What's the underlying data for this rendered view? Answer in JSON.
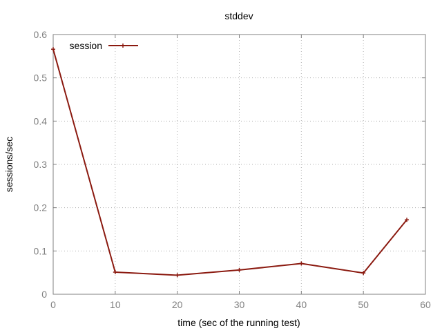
{
  "chart_data": {
    "type": "line",
    "title": "stddev",
    "xlabel": "time (sec of the running test)",
    "ylabel": "sessions/sec",
    "xlim": [
      0,
      60
    ],
    "ylim": [
      0,
      0.6
    ],
    "x_ticks": [
      0,
      10,
      20,
      30,
      40,
      50,
      60
    ],
    "y_ticks": [
      0,
      0.1,
      0.2,
      0.3,
      0.4,
      0.5,
      0.6
    ],
    "x_tick_labels": [
      "0",
      "10",
      "20",
      "30",
      "40",
      "50",
      "60"
    ],
    "y_tick_labels": [
      "0",
      "0.1",
      "0.2",
      "0.3",
      "0.4",
      "0.5",
      "0.6"
    ],
    "grid": true,
    "legend_position": "top-left",
    "series": [
      {
        "name": "session",
        "color": "#8b1a10",
        "x": [
          0,
          10,
          20,
          30,
          40,
          50,
          57
        ],
        "y": [
          0.566,
          0.051,
          0.044,
          0.056,
          0.071,
          0.049,
          0.172
        ]
      }
    ]
  }
}
